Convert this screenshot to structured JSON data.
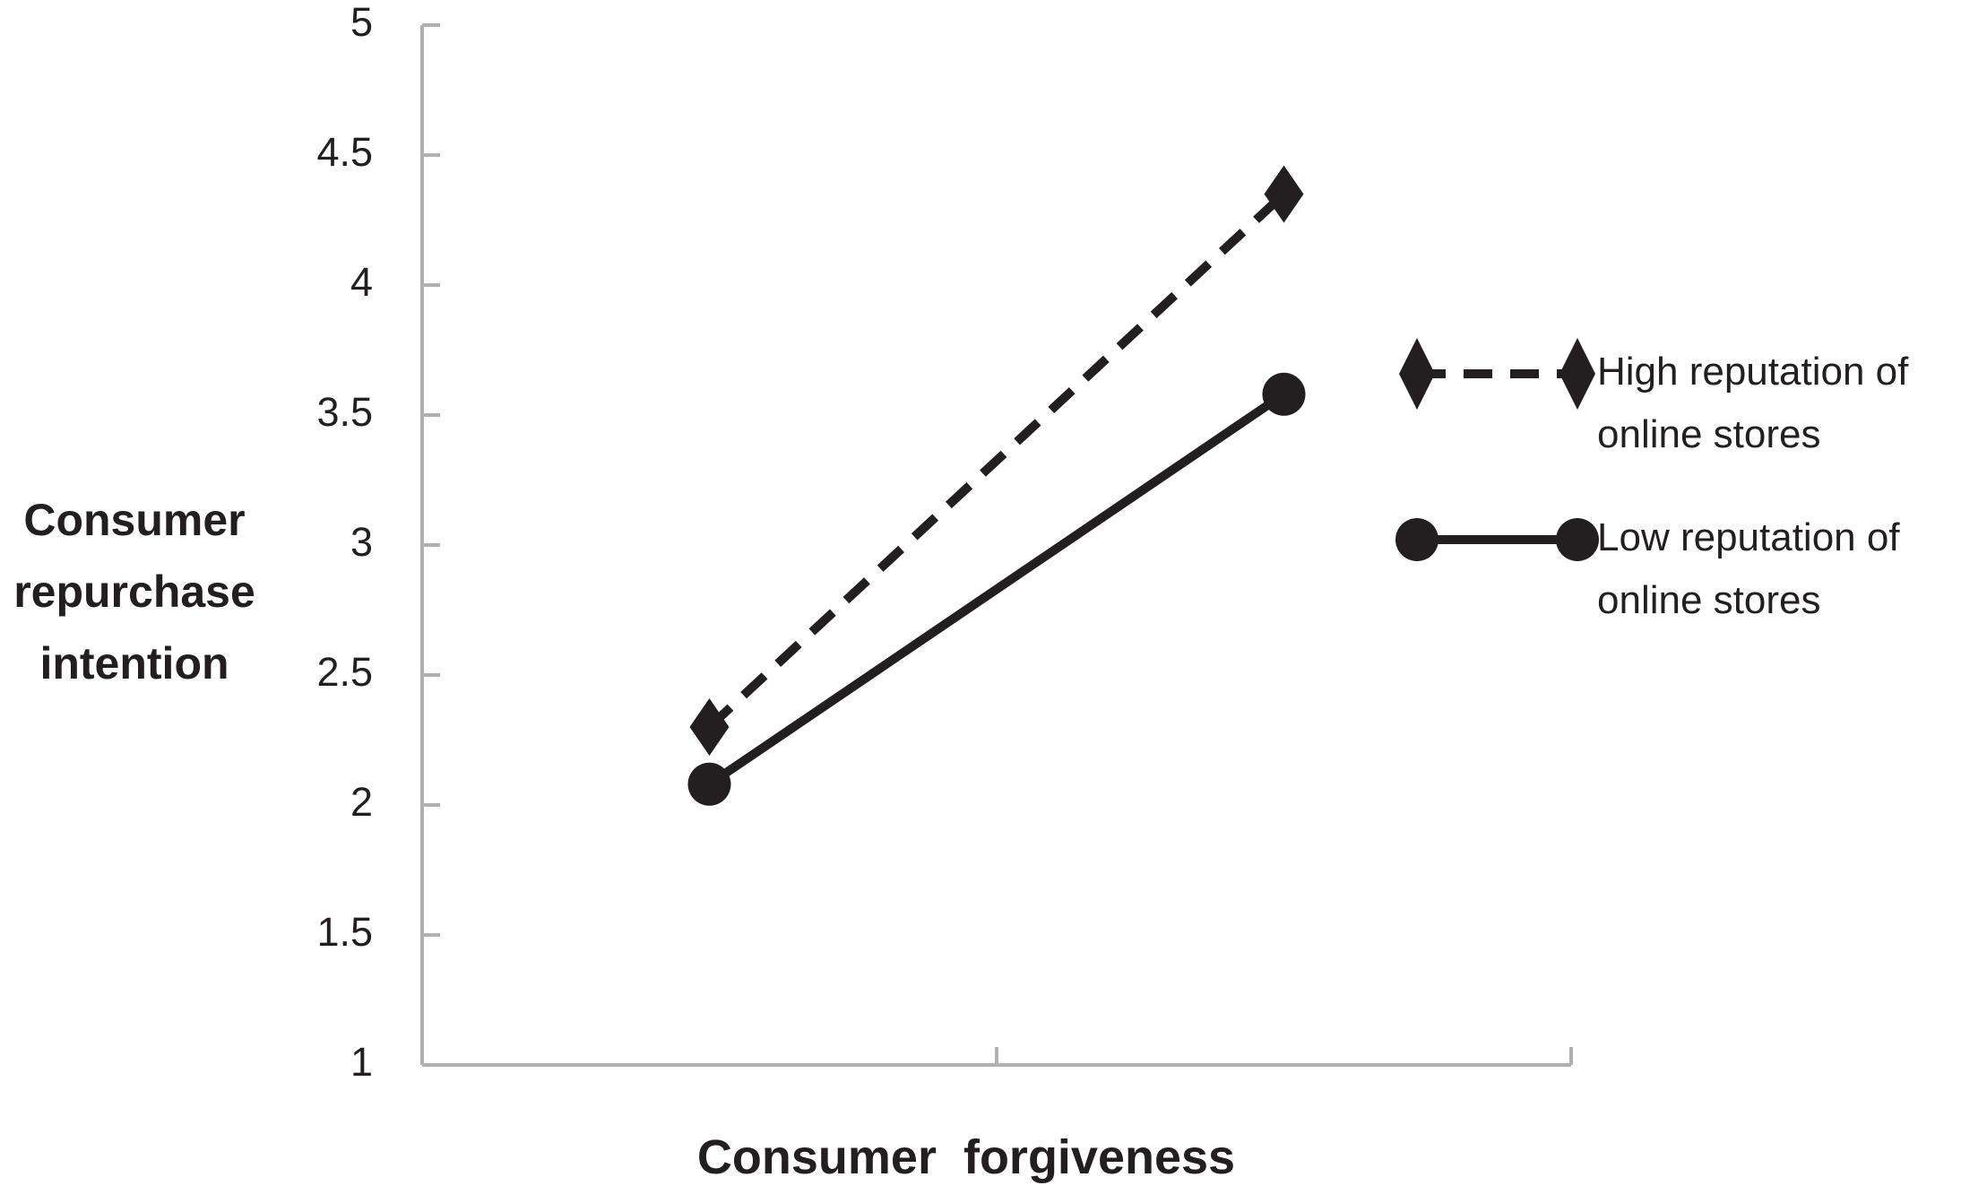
{
  "chart_data": {
    "type": "line",
    "x_label": "Consumer  forgiveness",
    "y_label": "Consumer repurchase intention",
    "categories": [
      null,
      null
    ],
    "series": [
      {
        "name": "High reputation of online stores",
        "color": "#231f20",
        "marker": "diamond",
        "dashed": true,
        "values": [
          2.3,
          4.35
        ]
      },
      {
        "name": "Low reputation of online stores",
        "color": "#231f20",
        "marker": "circle",
        "dashed": false,
        "values": [
          2.08,
          3.58
        ]
      }
    ],
    "ylim": [
      1,
      5
    ],
    "yticks": [
      1,
      1.5,
      2,
      2.5,
      3,
      3.5,
      4,
      4.5,
      5
    ],
    "grid": false,
    "legend": "right"
  }
}
